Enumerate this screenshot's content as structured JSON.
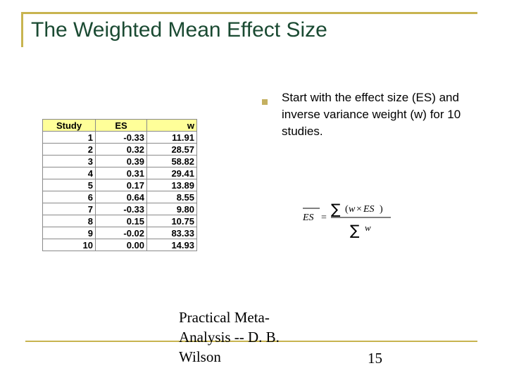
{
  "slide": {
    "title": "The Weighted Mean Effect Size",
    "bullet": "Start with the effect size (ES) and inverse variance weight (w) for 10 studies.",
    "footer": "Practical Meta-Analysis -- D. B. Wilson",
    "page_number": "15",
    "accent_color": "#c8b450",
    "title_color": "#1a4a32"
  },
  "table": {
    "headers": [
      "Study",
      "ES",
      "w"
    ],
    "header_bg": "#ffff99",
    "rows": [
      [
        "1",
        "-0.33",
        "11.91"
      ],
      [
        "2",
        "0.32",
        "28.57"
      ],
      [
        "3",
        "0.39",
        "58.82"
      ],
      [
        "4",
        "0.31",
        "29.41"
      ],
      [
        "5",
        "0.17",
        "13.89"
      ],
      [
        "6",
        "0.64",
        "8.55"
      ],
      [
        "7",
        "-0.33",
        "9.80"
      ],
      [
        "8",
        "0.15",
        "10.75"
      ],
      [
        "9",
        "-0.02",
        "83.33"
      ],
      [
        "10",
        "0.00",
        "14.93"
      ]
    ]
  },
  "formula": {
    "lhs": "ES",
    "equals": "=",
    "sigma": "∑",
    "numerator_open": "(",
    "numerator_w": "w",
    "numerator_times": "×",
    "numerator_es": "ES",
    "numerator_close": ")",
    "denominator": "w"
  }
}
